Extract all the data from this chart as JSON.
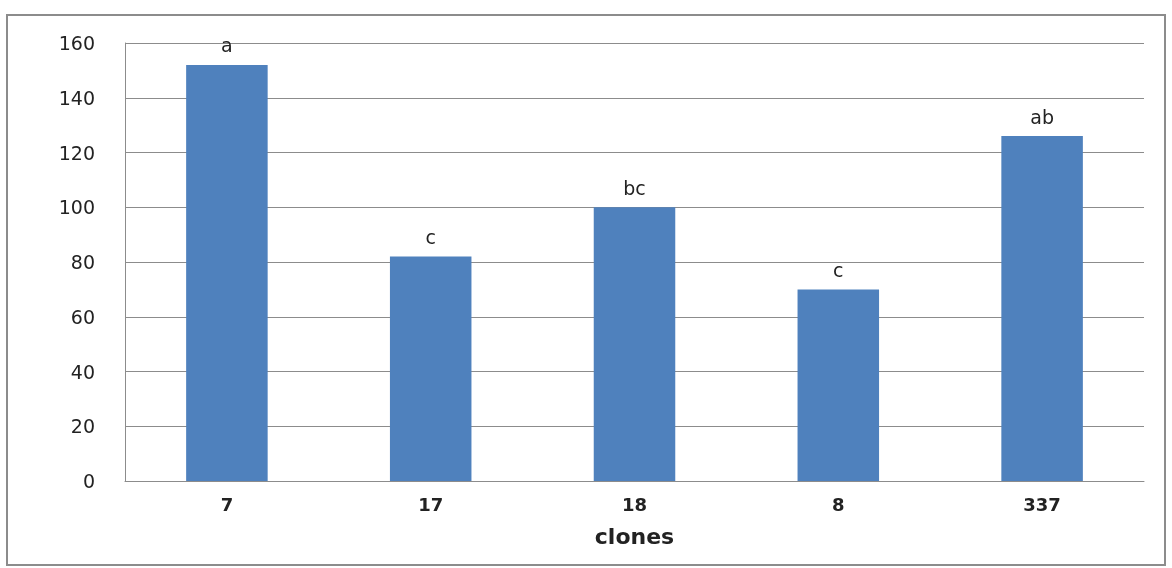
{
  "chart_data": {
    "type": "bar",
    "xlabel": "clones",
    "categories": [
      "7",
      "17",
      "18",
      "8",
      "337"
    ],
    "values": [
      152,
      82,
      100,
      70,
      126
    ],
    "color": "#4f81bd",
    "ylim": [
      0,
      160
    ],
    "yticks": [
      0,
      20,
      40,
      60,
      80,
      100,
      120,
      140,
      160
    ],
    "grid": "y",
    "annotations": [
      {
        "text": "a",
        "x": "7",
        "y": 152
      },
      {
        "text": "c",
        "x": "17",
        "y": 82
      },
      {
        "text": "bc",
        "x": "18",
        "y": 100
      },
      {
        "text": "c",
        "x": "8",
        "y": 70
      },
      {
        "text": "ab",
        "x": "337",
        "y": 126
      }
    ]
  }
}
